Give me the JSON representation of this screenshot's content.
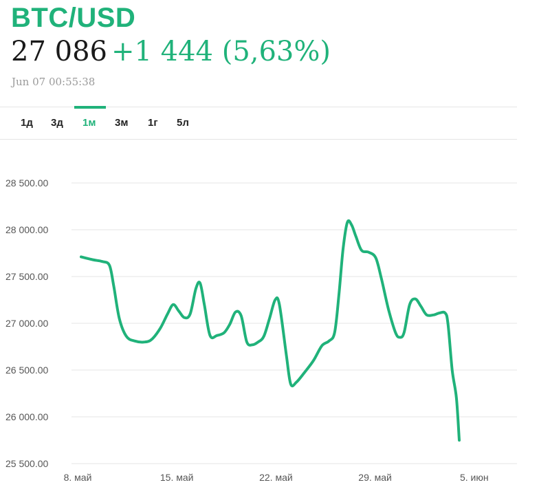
{
  "header": {
    "pair": "BTC/USD",
    "price": "27 086",
    "change": "+1 444 (5,63%)",
    "timestamp": "Jun 07 00:55:38"
  },
  "colors": {
    "accent": "#20b27a",
    "grid": "#e4e4e4",
    "text": "#1a1a1a"
  },
  "tabs": [
    {
      "label": "1д",
      "active": false
    },
    {
      "label": "3д",
      "active": false
    },
    {
      "label": "1м",
      "active": true
    },
    {
      "label": "3м",
      "active": false
    },
    {
      "label": "1г",
      "active": false
    },
    {
      "label": "5л",
      "active": false
    }
  ],
  "chart_data": {
    "type": "line",
    "title": "",
    "xlabel": "",
    "ylabel": "",
    "yticks": [
      {
        "value": 28500,
        "label": "28 500.00"
      },
      {
        "value": 28000,
        "label": "28 000.00"
      },
      {
        "value": 27500,
        "label": "27 500.00"
      },
      {
        "value": 27000,
        "label": "27 000.00"
      },
      {
        "value": 26500,
        "label": "26 500.00"
      },
      {
        "value": 26000,
        "label": "26 000.00"
      },
      {
        "value": 25500,
        "label": "25 500.00"
      }
    ],
    "xticks": [
      {
        "day": 0,
        "label": "8. май"
      },
      {
        "day": 7,
        "label": "15. май"
      },
      {
        "day": 14,
        "label": "22. май"
      },
      {
        "day": 21,
        "label": "29. май"
      },
      {
        "day": 28,
        "label": "5. июн"
      }
    ],
    "ylim": [
      25500,
      28700
    ],
    "xlim": [
      0,
      30
    ],
    "grid": "horizontal",
    "series": [
      {
        "points": [
          [
            0.0,
            27710
          ],
          [
            0.8,
            27680
          ],
          [
            1.5,
            27660
          ],
          [
            2.0,
            27620
          ],
          [
            2.3,
            27400
          ],
          [
            2.7,
            27050
          ],
          [
            3.2,
            26860
          ],
          [
            3.8,
            26810
          ],
          [
            4.5,
            26800
          ],
          [
            5.0,
            26830
          ],
          [
            5.6,
            26950
          ],
          [
            6.1,
            27100
          ],
          [
            6.5,
            27200
          ],
          [
            6.9,
            27130
          ],
          [
            7.3,
            27060
          ],
          [
            7.7,
            27100
          ],
          [
            8.1,
            27370
          ],
          [
            8.4,
            27430
          ],
          [
            8.7,
            27200
          ],
          [
            9.1,
            26870
          ],
          [
            9.6,
            26870
          ],
          [
            10.1,
            26900
          ],
          [
            10.5,
            26990
          ],
          [
            10.9,
            27120
          ],
          [
            11.3,
            27080
          ],
          [
            11.7,
            26800
          ],
          [
            12.1,
            26770
          ],
          [
            12.5,
            26800
          ],
          [
            12.9,
            26860
          ],
          [
            13.3,
            27050
          ],
          [
            13.7,
            27250
          ],
          [
            14.0,
            27200
          ],
          [
            14.5,
            26650
          ],
          [
            14.8,
            26350
          ],
          [
            15.2,
            26370
          ],
          [
            15.8,
            26480
          ],
          [
            16.4,
            26600
          ],
          [
            17.0,
            26760
          ],
          [
            17.5,
            26810
          ],
          [
            17.9,
            26900
          ],
          [
            18.2,
            27300
          ],
          [
            18.5,
            27800
          ],
          [
            18.8,
            28080
          ],
          [
            19.1,
            28050
          ],
          [
            19.4,
            27930
          ],
          [
            19.8,
            27780
          ],
          [
            20.3,
            27760
          ],
          [
            20.8,
            27700
          ],
          [
            21.2,
            27480
          ],
          [
            21.7,
            27150
          ],
          [
            22.2,
            26900
          ],
          [
            22.5,
            26850
          ],
          [
            22.8,
            26900
          ],
          [
            23.2,
            27200
          ],
          [
            23.6,
            27260
          ],
          [
            24.0,
            27180
          ],
          [
            24.4,
            27090
          ],
          [
            24.9,
            27090
          ],
          [
            25.3,
            27110
          ],
          [
            25.7,
            27110
          ],
          [
            25.9,
            27000
          ],
          [
            26.2,
            26500
          ],
          [
            26.5,
            26200
          ],
          [
            26.7,
            25750
          ]
        ]
      }
    ]
  }
}
